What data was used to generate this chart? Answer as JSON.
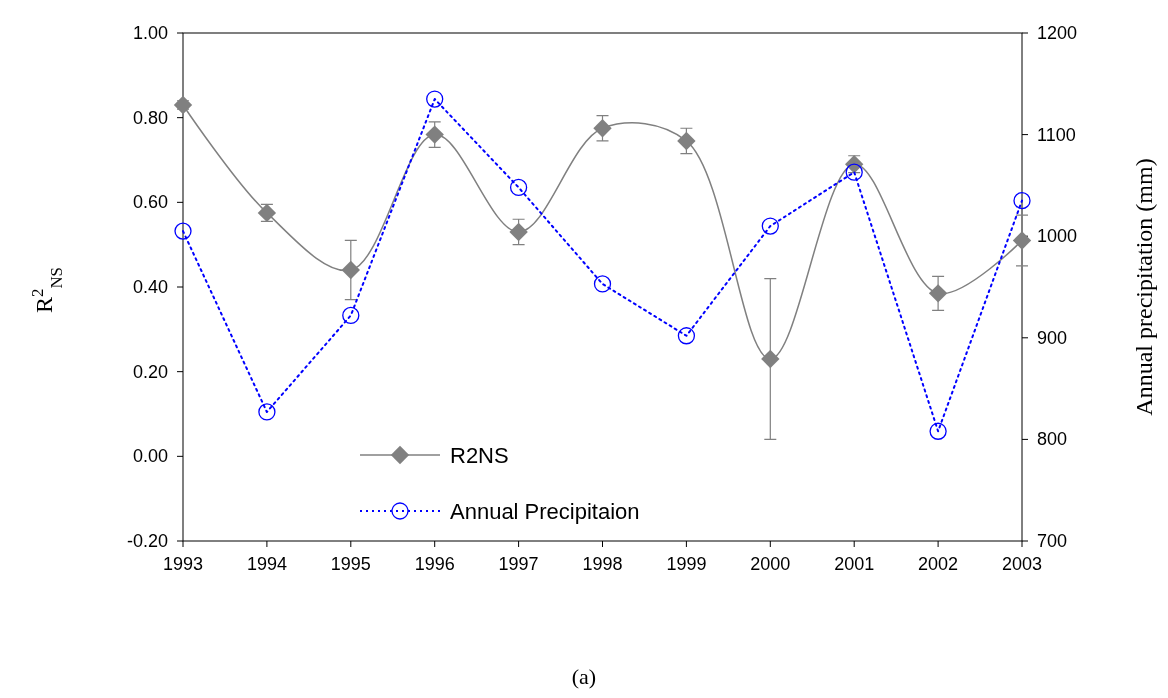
{
  "chart_data": {
    "type": "line",
    "ylabel": "R$^{2}$$_{NS}$",
    "y2label": "Annual precipitation (mm)",
    "annotations": [
      "(a)"
    ],
    "x": [
      1993,
      1994,
      1995,
      1996,
      1997,
      1998,
      1999,
      2000,
      2001,
      2002,
      2003
    ],
    "xlim": [
      1993,
      2003
    ],
    "xticks": [
      1993,
      1994,
      1995,
      1996,
      1997,
      1998,
      1999,
      2000,
      2001,
      2002,
      2003
    ],
    "ylim": [
      -0.2,
      1.0
    ],
    "yticks": [
      {
        "value": -0.2,
        "label": "-0.20"
      },
      {
        "value": 0,
        "label": "0.00"
      },
      {
        "value": 0.2,
        "label": "0.20"
      },
      {
        "value": 0.4,
        "label": "0.40"
      },
      {
        "value": 0.6,
        "label": "0.60"
      },
      {
        "value": 0.8,
        "label": "0.80"
      },
      {
        "value": 1.0,
        "label": "1.00"
      }
    ],
    "y2lim": [
      700,
      1200
    ],
    "y2ticks": [
      700,
      800,
      900,
      1000,
      1100,
      1200
    ],
    "grid": false,
    "legend": "bottom",
    "series": [
      {
        "name": "R2NS",
        "color": "#808080",
        "marker": "diamond",
        "line_style": "solid",
        "values": [
          0.83,
          0.575,
          0.44,
          0.76,
          0.53,
          0.775,
          0.745,
          0.23,
          0.69,
          0.385,
          0.51
        ],
        "errors": [
          0.01,
          0.02,
          0.07,
          0.03,
          0.03,
          0.03,
          0.03,
          0.19,
          0.02,
          0.04,
          0.06
        ]
      },
      {
        "name": "Annual Precipitaion",
        "color": "#0000ff",
        "marker": "circle",
        "line_style": "dotted",
        "axis": "y2",
        "values": [
          1005,
          827,
          922,
          1135,
          1048,
          953,
          902,
          1010,
          1063,
          808,
          1035
        ]
      }
    ]
  }
}
